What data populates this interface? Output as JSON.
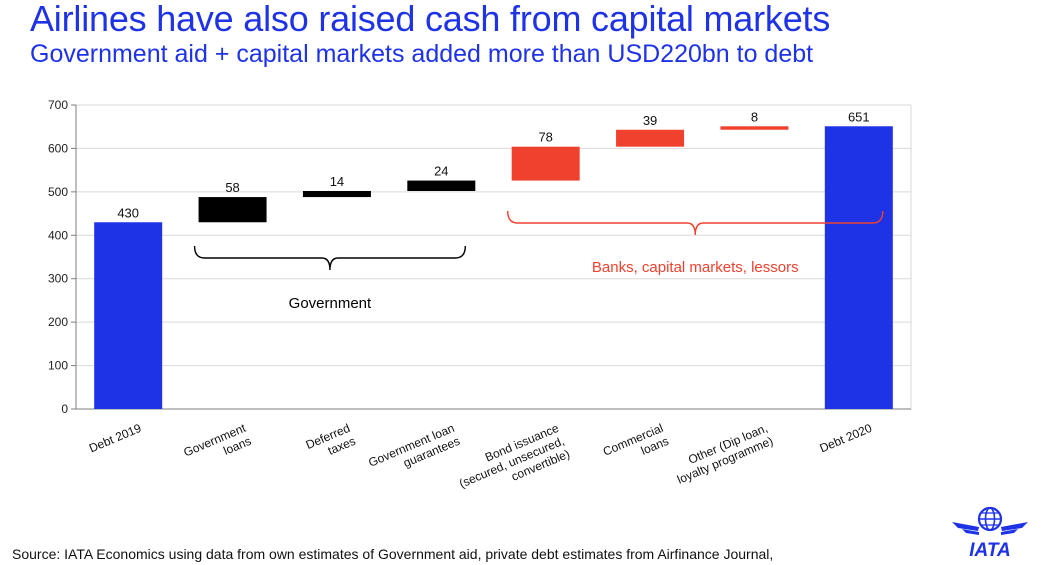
{
  "header": {
    "title": "Airlines have also raised cash from capital markets",
    "subtitle": "Government aid + capital markets added more than USD220bn to debt"
  },
  "footer": {
    "source": "Source: IATA Economics using data from own estimates of Government aid, private debt estimates from Airfinance Journal,"
  },
  "logo": {
    "text": "IATA",
    "icon": "globe-wings-icon"
  },
  "colors": {
    "total": "#1e32e6",
    "government": "#000000",
    "private": "#f0412f",
    "title": "#1e32e6"
  },
  "chart_data": {
    "type": "bar",
    "subtype": "waterfall",
    "categories": [
      [
        "Debt 2019"
      ],
      [
        "Government",
        "loans"
      ],
      [
        "Deferred",
        "taxes"
      ],
      [
        "Government loan",
        "guarantees"
      ],
      [
        "Bond issuance",
        "(secured, unsecured,",
        "convertible)"
      ],
      [
        "Commercial",
        "loans"
      ],
      [
        "Other (Dip loan,",
        "loyalty programme)"
      ],
      [
        "Debt 2020"
      ]
    ],
    "bars": [
      {
        "kind": "total",
        "start": 0,
        "end": 430,
        "label": "430"
      },
      {
        "kind": "government",
        "start": 430,
        "end": 488,
        "label": "58"
      },
      {
        "kind": "government",
        "start": 488,
        "end": 502,
        "label": "14"
      },
      {
        "kind": "government",
        "start": 502,
        "end": 526,
        "label": "24"
      },
      {
        "kind": "private",
        "start": 526,
        "end": 604,
        "label": "78"
      },
      {
        "kind": "private",
        "start": 604,
        "end": 643,
        "label": "39"
      },
      {
        "kind": "private",
        "start": 643,
        "end": 651,
        "label": "8"
      },
      {
        "kind": "total",
        "start": 0,
        "end": 651,
        "label": "651"
      }
    ],
    "ylim": [
      0,
      700
    ],
    "yticks": [
      "0",
      "100",
      "200",
      "300",
      "400",
      "500",
      "600",
      "700"
    ],
    "grid": true,
    "groups": [
      {
        "label": "Government",
        "first": 1,
        "last": 3,
        "kind": "government"
      },
      {
        "label": "Banks, capital markets, lessors",
        "first": 4,
        "last": 7,
        "kind": "private"
      }
    ]
  }
}
